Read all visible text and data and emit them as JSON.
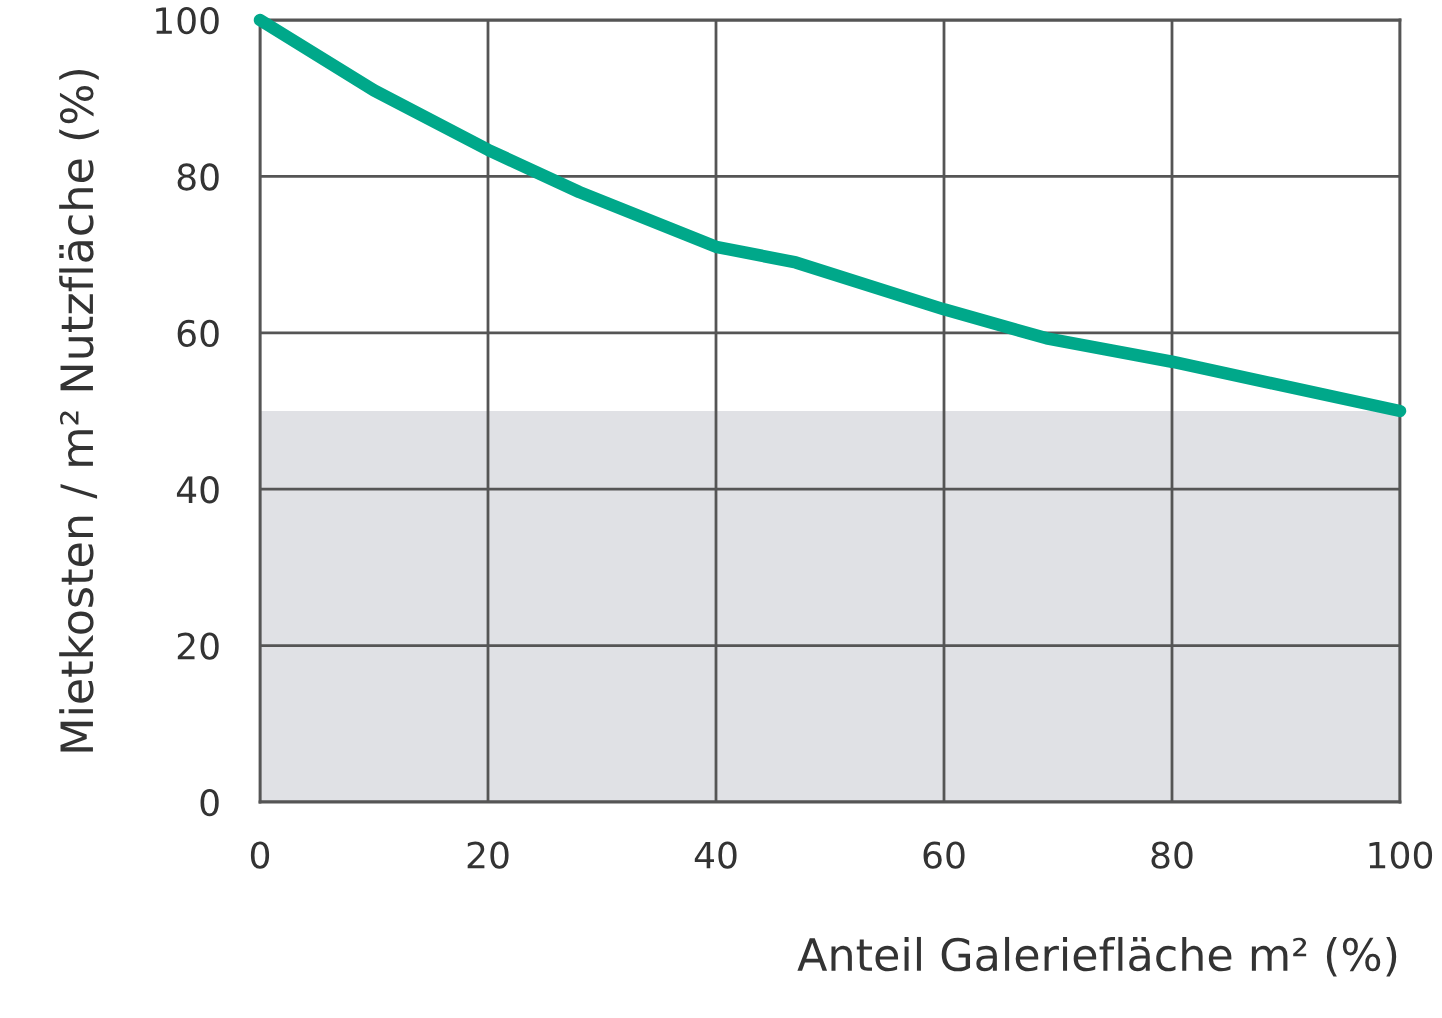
{
  "chart_data": {
    "type": "line",
    "xlabel": "Anteil Galeriefläche m² (%)",
    "ylabel": "Mietkosten / m² Nutzfläche (%)",
    "x": [
      0,
      10,
      20,
      28,
      40,
      47,
      60,
      69,
      80,
      100
    ],
    "series": [
      {
        "color": "#00a88a",
        "values": [
          100,
          91,
          83.4,
          78,
          71,
          69,
          63,
          59.3,
          56.3,
          50
        ]
      }
    ],
    "xlim": [
      0,
      100
    ],
    "ylim": [
      0,
      100
    ],
    "xticks": [
      0,
      20,
      40,
      60,
      80,
      100
    ],
    "yticks": [
      0,
      20,
      40,
      60,
      80,
      100
    ],
    "bands": [
      {
        "axis": "y",
        "from": 0,
        "to": 50,
        "color": "#e0e1e5"
      }
    ],
    "grid": true,
    "marker": "none",
    "line_style": "solid"
  }
}
